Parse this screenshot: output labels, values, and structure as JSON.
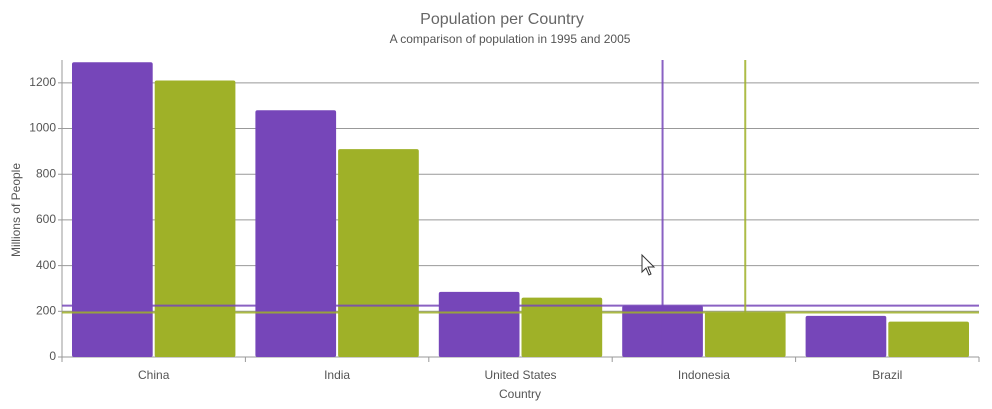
{
  "chart_data": {
    "type": "bar",
    "title": "Population per Country",
    "subtitle": "A comparison of population in 1995 and 2005",
    "x_label": "Country",
    "y_label": "Millions of People",
    "categories": [
      "China",
      "India",
      "United States",
      "Indonesia",
      "Brazil"
    ],
    "series": [
      {
        "color": "#7646b9",
        "values": [
          1290,
          1080,
          285,
          225,
          180
        ]
      },
      {
        "color": "#9fb128",
        "values": [
          1210,
          910,
          260,
          195,
          155
        ]
      }
    ],
    "ylim": [
      0,
      1300
    ],
    "yticks": [
      0,
      200,
      400,
      600,
      800,
      1000,
      1200
    ],
    "grid": true,
    "crosshair": {
      "category_index": 3
    }
  }
}
